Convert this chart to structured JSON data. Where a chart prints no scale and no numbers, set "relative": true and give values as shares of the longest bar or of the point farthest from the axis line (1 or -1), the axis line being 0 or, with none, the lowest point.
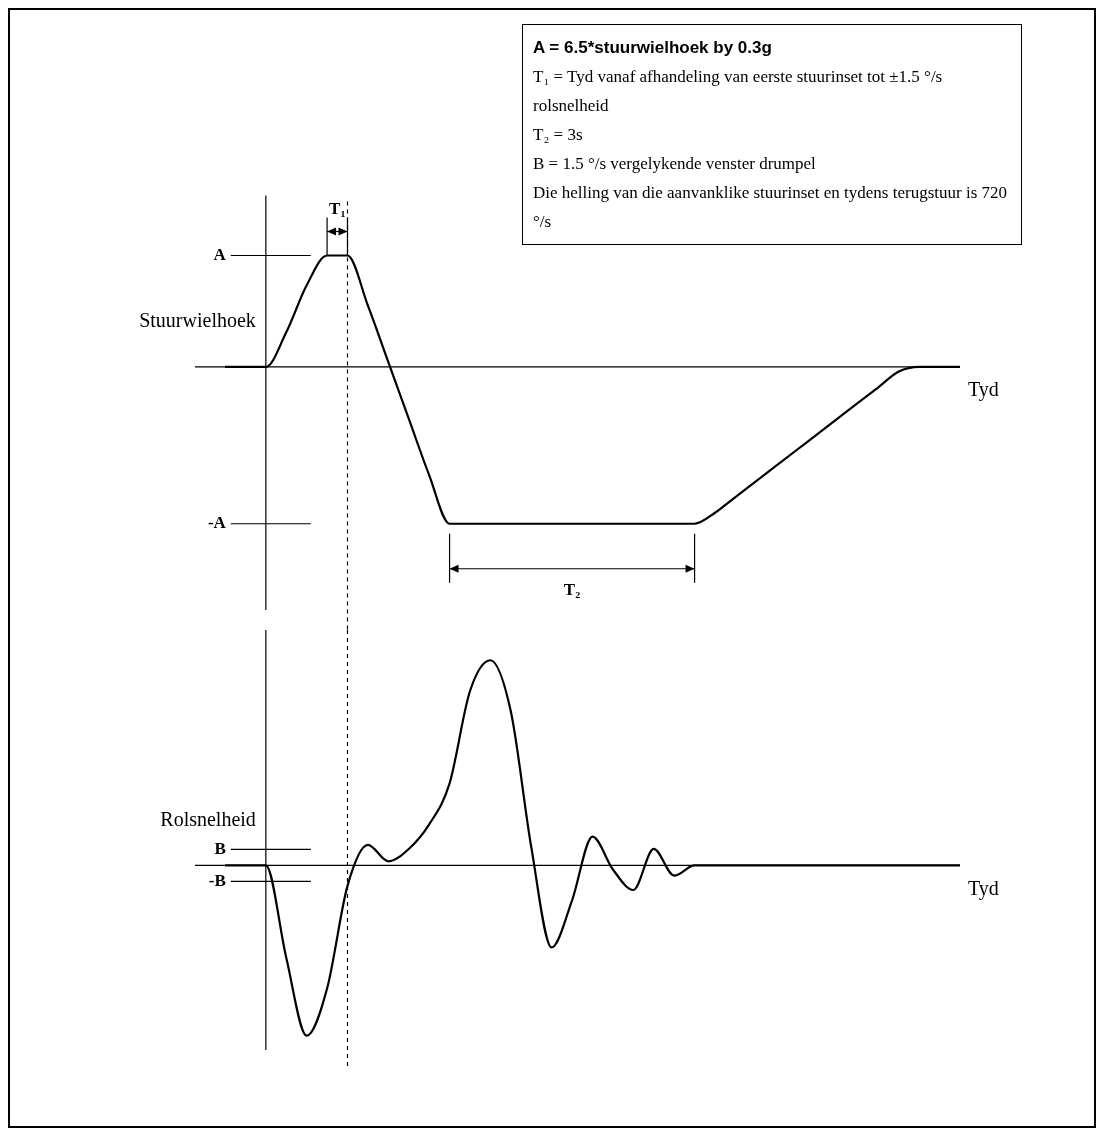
{
  "chart_data": [
    {
      "type": "line",
      "ylabel": "Stuurwielhoek",
      "xlabel": "Tyd",
      "relative": true,
      "marker": "none",
      "categories": [
        null,
        null,
        null,
        null,
        null,
        null,
        null,
        null,
        null,
        null,
        null,
        null,
        null,
        null,
        null,
        null,
        null,
        null,
        null,
        null,
        null,
        null,
        null,
        null,
        null,
        null,
        null,
        null,
        null,
        null,
        null,
        null,
        null,
        null,
        null,
        null,
        null
      ],
      "series": [
        {
          "color": "#000000",
          "values": [
            0,
            0,
            0,
            0.22,
            0.52,
            0.71,
            0.71,
            0.39,
            0.03,
            -0.33,
            -0.69,
            -1,
            -1,
            -1,
            -1,
            -1,
            -1,
            -1,
            -1,
            -1,
            -1,
            -1,
            -1,
            -1,
            -0.93,
            -0.83,
            -0.73,
            -0.63,
            -0.53,
            -0.43,
            -0.33,
            -0.23,
            -0.13,
            -0.03,
            0,
            0,
            0
          ]
        }
      ],
      "annotations": [
        "A = 6.5*stuurwielhoek by 0.3g",
        "T₁ = Tyd vanaf afhandeling van eerste stuurinset tot ±1.5 °/s rolsnelheid",
        "T₂ = 3s",
        "B = 1.5 °/s vergelykende venster drumpel",
        "Die helling van die aanvanklike stuurinset en tydens terugstuur is 720 °/s",
        "A",
        "-A",
        "T₁",
        "T₂"
      ]
    },
    {
      "type": "line",
      "ylabel": "Rolsnelheid",
      "xlabel": "Tyd",
      "relative": true,
      "marker": "none",
      "categories": [
        null,
        null,
        null,
        null,
        null,
        null,
        null,
        null,
        null,
        null,
        null,
        null,
        null,
        null,
        null,
        null,
        null,
        null,
        null,
        null,
        null,
        null,
        null,
        null,
        null,
        null,
        null,
        null,
        null,
        null,
        null,
        null,
        null,
        null,
        null,
        null,
        null
      ],
      "series": [
        {
          "color": "#000000",
          "values": [
            0,
            0,
            0,
            -0.45,
            -0.83,
            -0.6,
            -0.1,
            0.1,
            0.02,
            0.08,
            0.2,
            0.4,
            0.85,
            1,
            0.75,
            0.09,
            -0.4,
            -0.17,
            0.14,
            -0.02,
            -0.12,
            0.08,
            -0.05,
            0,
            0,
            0,
            0,
            0,
            0,
            0,
            0,
            0,
            0,
            0,
            0,
            0,
            0
          ]
        }
      ],
      "annotations": [
        "B",
        "-B"
      ]
    }
  ]
}
